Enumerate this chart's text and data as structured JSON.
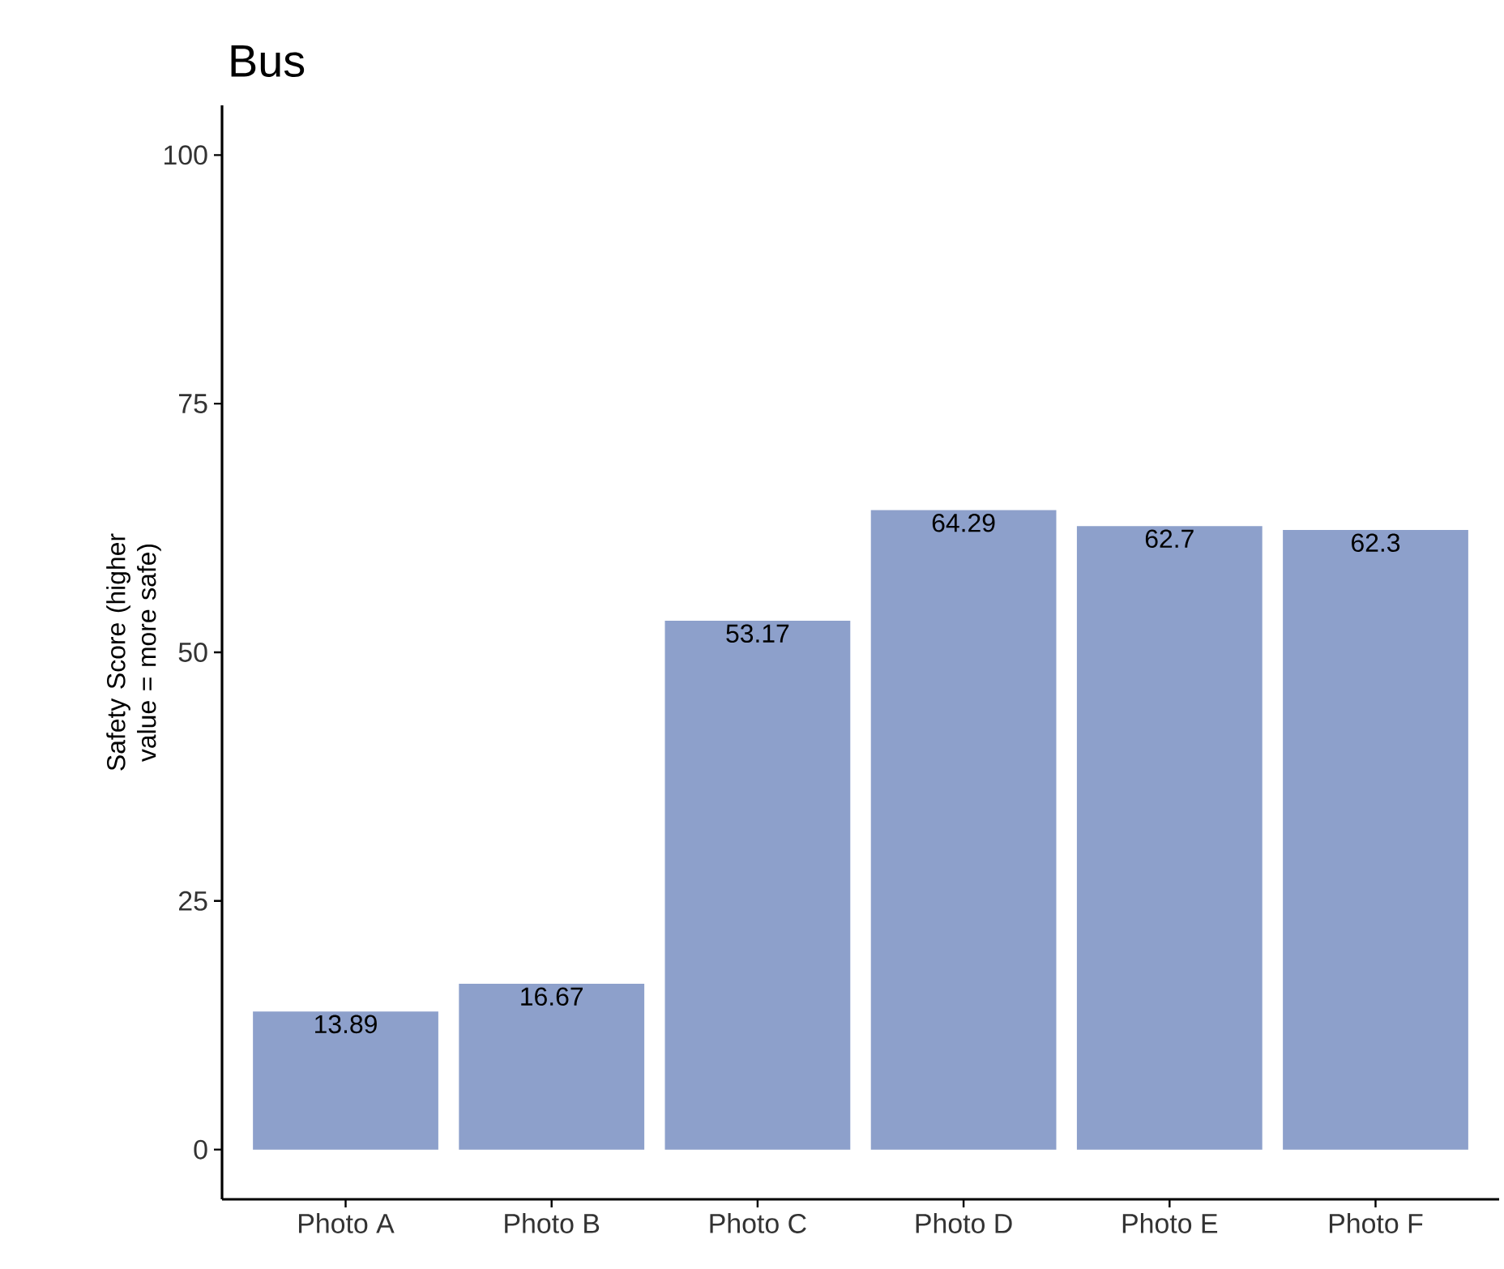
{
  "chart_data": {
    "type": "bar",
    "title": "Bus",
    "ylabel": "Safety Score (higher value = more safe)",
    "categories": [
      "Photo A",
      "Photo B",
      "Photo C",
      "Photo D",
      "Photo E",
      "Photo F"
    ],
    "values": [
      13.89,
      16.67,
      53.17,
      64.29,
      62.7,
      62.3
    ],
    "color": "#8da0cb",
    "ylim": [
      -5,
      105
    ],
    "yticks": [
      0,
      25,
      50,
      75,
      100
    ],
    "data_labels": true,
    "grid": false
  }
}
